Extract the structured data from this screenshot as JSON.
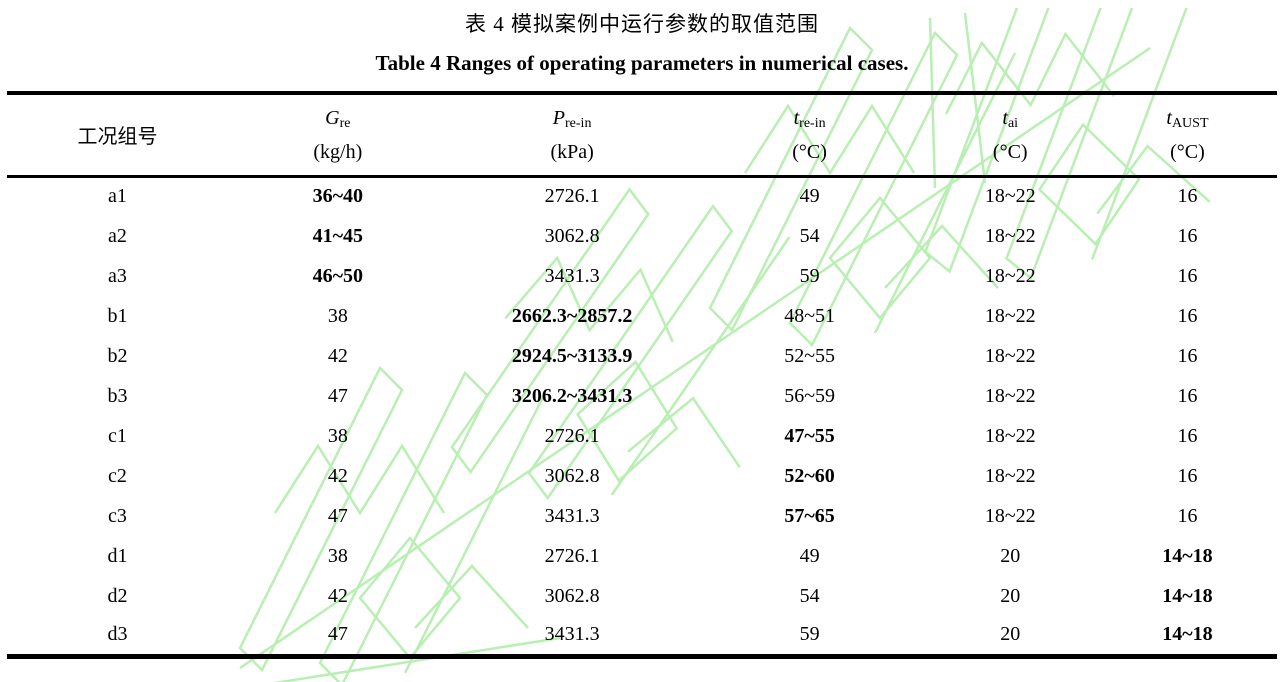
{
  "page": {
    "title_cn": "表 4  模拟案例中运行参数的取值范围",
    "title_en": "Table 4 Ranges of operating parameters in numerical cases."
  },
  "table": {
    "group_header": "工况组号",
    "columns": [
      {
        "symbol": "G",
        "subscript": "re",
        "unit": "(kg/h)"
      },
      {
        "symbol": "P",
        "subscript": "re-in",
        "unit": "(kPa)"
      },
      {
        "symbol": "t",
        "subscript": "re-in",
        "unit": "(°C)"
      },
      {
        "symbol": "t",
        "subscript": "ai",
        "unit": "(°C)"
      },
      {
        "symbol": "t",
        "subscript": "AUST",
        "unit": "(°C)"
      }
    ],
    "rows": [
      {
        "id": "a1",
        "values": [
          "36~40",
          "2726.1",
          "49",
          "18~22",
          "16"
        ],
        "bold_index": 0
      },
      {
        "id": "a2",
        "values": [
          "41~45",
          "3062.8",
          "54",
          "18~22",
          "16"
        ],
        "bold_index": 0
      },
      {
        "id": "a3",
        "values": [
          "46~50",
          "3431.3",
          "59",
          "18~22",
          "16"
        ],
        "bold_index": 0
      },
      {
        "id": "b1",
        "values": [
          "38",
          "2662.3~2857.2",
          "48~51",
          "18~22",
          "16"
        ],
        "bold_index": 1
      },
      {
        "id": "b2",
        "values": [
          "42",
          "2924.5~3133.9",
          "52~55",
          "18~22",
          "16"
        ],
        "bold_index": 1
      },
      {
        "id": "b3",
        "values": [
          "47",
          "3206.2~3431.3",
          "56~59",
          "18~22",
          "16"
        ],
        "bold_index": 1
      },
      {
        "id": "c1",
        "values": [
          "38",
          "2726.1",
          "47~55",
          "18~22",
          "16"
        ],
        "bold_index": 2
      },
      {
        "id": "c2",
        "values": [
          "42",
          "3062.8",
          "52~60",
          "18~22",
          "16"
        ],
        "bold_index": 2
      },
      {
        "id": "c3",
        "values": [
          "47",
          "3431.3",
          "57~65",
          "18~22",
          "16"
        ],
        "bold_index": 2
      },
      {
        "id": "d1",
        "values": [
          "38",
          "2726.1",
          "49",
          "20",
          "14~18"
        ],
        "bold_index": 4
      },
      {
        "id": "d2",
        "values": [
          "42",
          "3062.8",
          "54",
          "20",
          "14~18"
        ],
        "bold_index": 4
      },
      {
        "id": "d3",
        "values": [
          "47",
          "3431.3",
          "59",
          "20",
          "14~18"
        ],
        "bold_index": 4
      }
    ]
  },
  "watermark": {
    "color": "#b9efb2"
  }
}
